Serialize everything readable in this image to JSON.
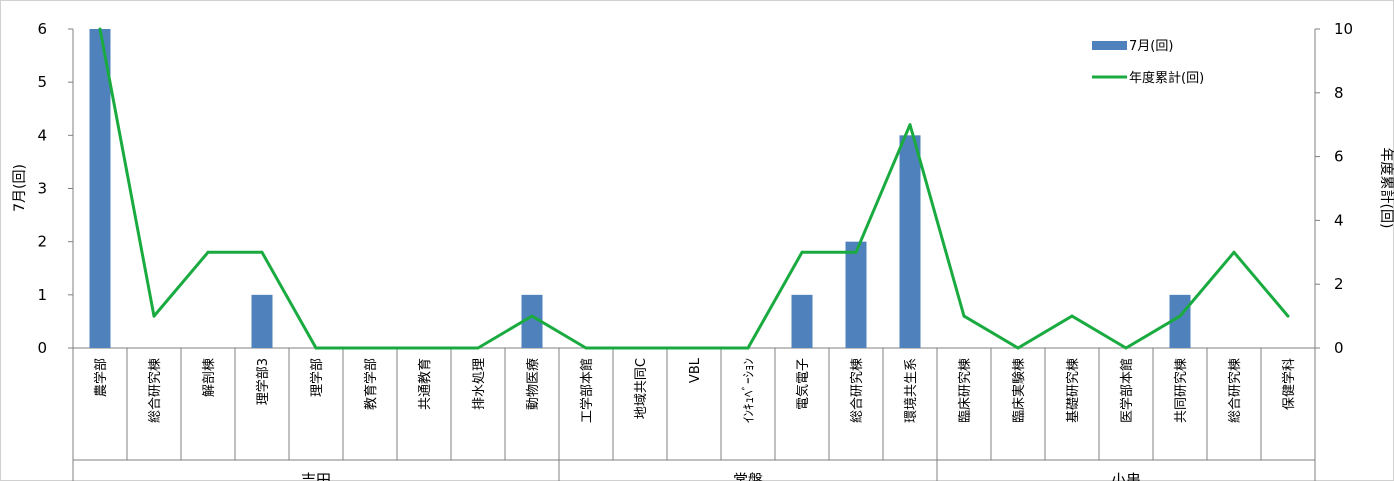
{
  "chart_data": {
    "type": "bar+line",
    "categories": [
      "農学部",
      "総合研究棟",
      "解剖棟",
      "理学部3",
      "理学部",
      "教育学部",
      "共通教育",
      "排水処理",
      "動物医療",
      "工学部本館",
      "地域共同C",
      "VBL",
      "ｲﾝｷｭﾍﾞｰｼｮﾝ",
      "電気電子",
      "総合研究棟",
      "環境共生系",
      "臨床研究棟",
      "臨床実験棟",
      "基礎研究棟",
      "医学部本館",
      "共同研究棟",
      "総合研究棟",
      "保健学科"
    ],
    "groups": [
      {
        "label": "吉田",
        "count": 9
      },
      {
        "label": "常盤",
        "count": 7
      },
      {
        "label": "小串",
        "count": 7
      }
    ],
    "series": [
      {
        "name": "7月(回)",
        "type": "bar",
        "axis": "left",
        "color": "#4f81bd",
        "values": [
          6,
          0,
          0,
          1,
          0,
          0,
          0,
          0,
          1,
          0,
          0,
          0,
          0,
          1,
          2,
          4,
          0,
          0,
          0,
          0,
          1,
          0,
          0
        ]
      },
      {
        "name": "年度累計(回)",
        "type": "line",
        "axis": "right",
        "color": "#1aab40",
        "values": [
          10,
          1,
          3,
          3,
          0,
          0,
          0,
          0,
          1,
          0,
          0,
          0,
          0,
          3,
          3,
          7,
          1,
          0,
          1,
          0,
          1,
          3,
          1
        ]
      }
    ],
    "y_left": {
      "label": "7月(回)",
      "min": 0,
      "max": 6,
      "ticks": [
        0,
        1,
        2,
        3,
        4,
        5,
        6
      ]
    },
    "y_right": {
      "label": "年度累計(回)",
      "min": 0,
      "max": 10,
      "ticks": [
        0,
        2,
        4,
        6,
        8,
        10
      ]
    },
    "legend": {
      "placement": "top-right"
    }
  }
}
